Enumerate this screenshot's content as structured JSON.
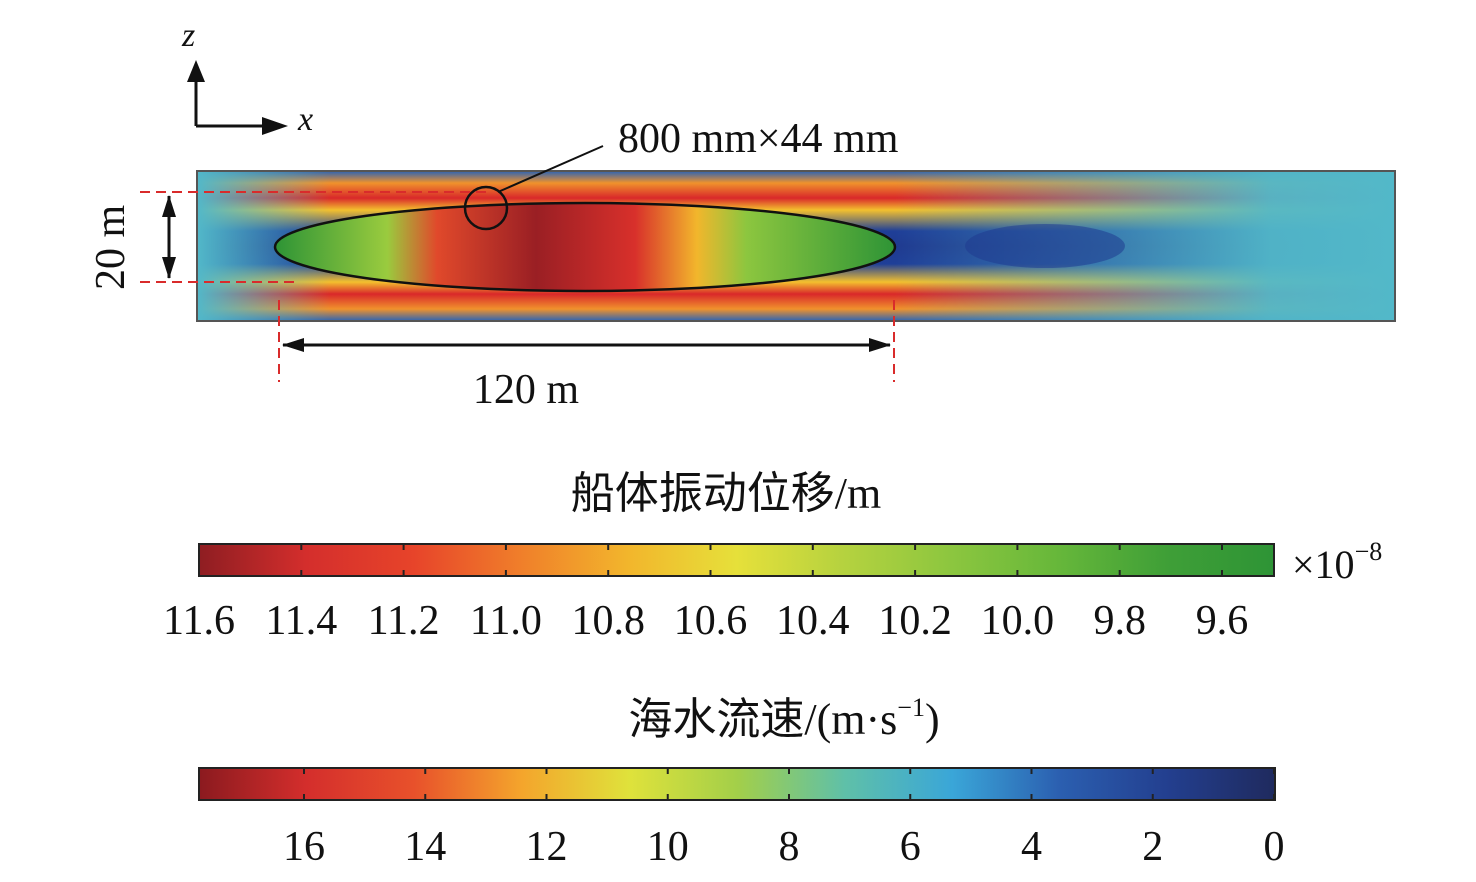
{
  "axes": {
    "z_label": "z",
    "x_label": "x"
  },
  "annotations": {
    "window_size": "800 mm×44 mm",
    "hull_height": "20 m",
    "hull_length": "120 m"
  },
  "colorbar_displacement": {
    "title": "船体振动位移/m",
    "multiplier_base": "×10",
    "multiplier_exp": "−8",
    "ticks": [
      "11.6",
      "11.4",
      "11.2",
      "11.0",
      "10.8",
      "10.6",
      "10.4",
      "10.2",
      "10.0",
      "9.8",
      "9.6"
    ],
    "colors": [
      "#8e1d22",
      "#d42e2c",
      "#e7442a",
      "#f07f2a",
      "#f2b62c",
      "#e6e03a",
      "#b5d23f",
      "#8cc63f",
      "#66b73a",
      "#3f9f37",
      "#2e9436"
    ]
  },
  "colorbar_velocity": {
    "title_main": "海水流速/(m·s",
    "title_exp": "−1",
    "title_close": ")",
    "ticks": [
      "16",
      "14",
      "12",
      "10",
      "8",
      "6",
      "4",
      "2",
      "0"
    ],
    "colors": [
      "#8b1a1f",
      "#d42e2c",
      "#e8512b",
      "#f4a52c",
      "#dfe23b",
      "#a3cf49",
      "#5fc0a8",
      "#3aa6d8",
      "#2b5fb0",
      "#233f8f",
      "#1f2a5e"
    ]
  },
  "field": {
    "background_color": "#52b8c9",
    "flow_fast_color": "#e2322b",
    "wake_color": "#23469e"
  }
}
